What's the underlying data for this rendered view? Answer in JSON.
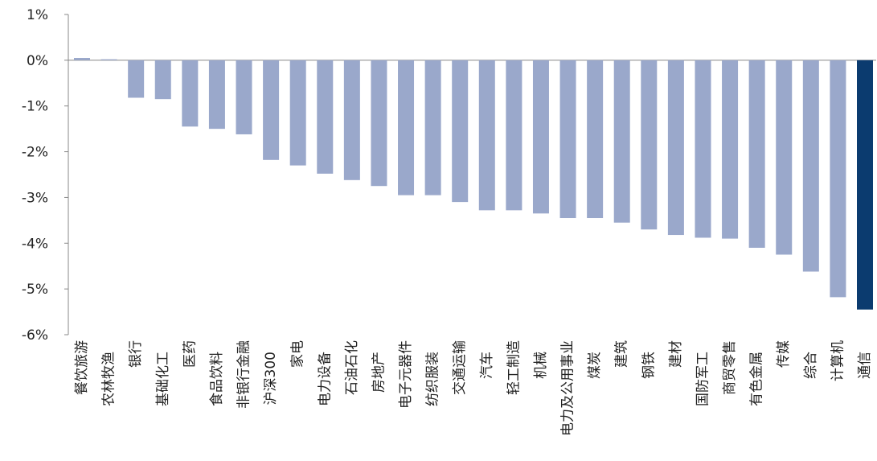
{
  "chart_data": {
    "type": "bar",
    "title": "",
    "xlabel": "",
    "ylabel": "",
    "ylim": [
      -6,
      1
    ],
    "yticks": [
      1,
      0,
      -1,
      -2,
      -3,
      -4,
      -5,
      -6
    ],
    "ytick_labels": [
      "1%",
      "0%",
      "-1%",
      "-2%",
      "-3%",
      "-4%",
      "-5%",
      "-6%"
    ],
    "grid": false,
    "legend": "none",
    "colors": {
      "default": "#9aa8cb",
      "highlight": "#0b3b6f",
      "axis": "#888888",
      "text": "#222222"
    },
    "highlight_index": 29,
    "categories": [
      "餐饮旅游",
      "农林牧渔",
      "银行",
      "基础化工",
      "医药",
      "食品饮料",
      "非银行金融",
      "沪深300",
      "家电",
      "电力设备",
      "石油石化",
      "房地产",
      "电子元器件",
      "纺织服装",
      "交通运输",
      "汽车",
      "轻工制造",
      "机械",
      "电力及公用事业",
      "煤炭",
      "建筑",
      "钢铁",
      "建材",
      "国防军工",
      "商贸零售",
      "有色金属",
      "传媒",
      "综合",
      "计算机",
      "通信"
    ],
    "values": [
      0.05,
      0.02,
      -0.82,
      -0.85,
      -1.45,
      -1.5,
      -1.62,
      -2.18,
      -2.3,
      -2.48,
      -2.62,
      -2.75,
      -2.95,
      -2.95,
      -3.1,
      -3.28,
      -3.28,
      -3.35,
      -3.45,
      -3.45,
      -3.55,
      -3.7,
      -3.82,
      -3.88,
      -3.9,
      -4.1,
      -4.25,
      -4.62,
      -5.18,
      -5.45
    ]
  }
}
